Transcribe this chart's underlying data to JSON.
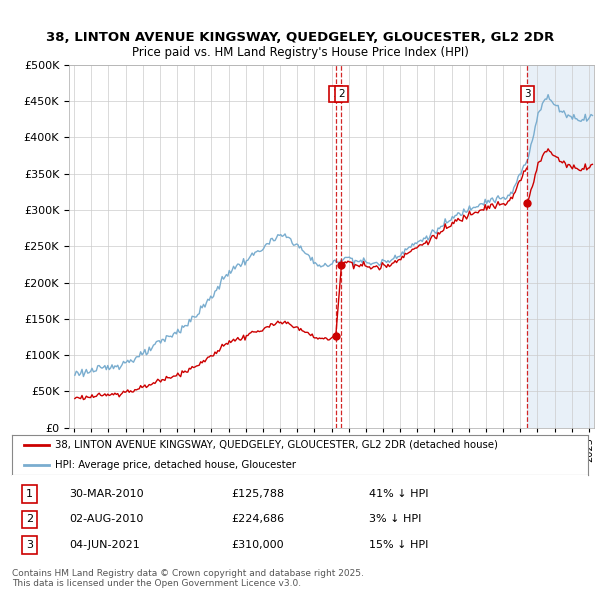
{
  "title1": "38, LINTON AVENUE KINGSWAY, QUEDGELEY, GLOUCESTER, GL2 2DR",
  "title2": "Price paid vs. HM Land Registry's House Price Index (HPI)",
  "red_label": "38, LINTON AVENUE KINGSWAY, QUEDGELEY, GLOUCESTER, GL2 2DR (detached house)",
  "blue_label": "HPI: Average price, detached house, Gloucester",
  "transactions": [
    {
      "num": 1,
      "date": "30-MAR-2010",
      "price": 125788,
      "pct": "41%",
      "x_year": 2010.247
    },
    {
      "num": 2,
      "date": "02-AUG-2010",
      "price": 224686,
      "pct": "3%",
      "x_year": 2010.581
    },
    {
      "num": 3,
      "date": "04-JUN-2021",
      "price": 310000,
      "pct": "15%",
      "x_year": 2021.42
    }
  ],
  "footer1": "Contains HM Land Registry data © Crown copyright and database right 2025.",
  "footer2": "This data is licensed under the Open Government Licence v3.0.",
  "ylim": [
    0,
    500000
  ],
  "xlim": [
    1994.7,
    2025.3
  ],
  "bg_color": "#ffffff",
  "grid_color": "#cccccc",
  "red_color": "#cc0000",
  "blue_color": "#7aadcf",
  "shade_color": "#e8f0f8"
}
